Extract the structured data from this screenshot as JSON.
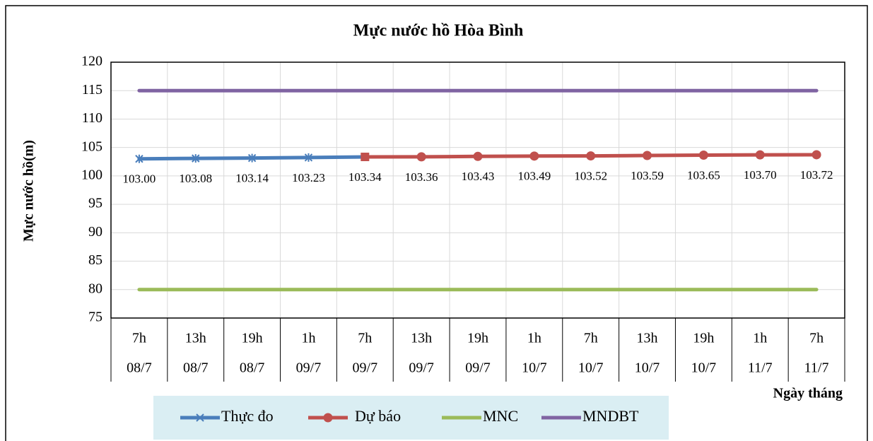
{
  "chart_data": {
    "type": "line",
    "title": "Mực nước hồ Hòa Bình",
    "y_label": "Mực nước hồ(m)",
    "x_label": "Ngày tháng",
    "categories": [
      [
        "7h",
        "08/7"
      ],
      [
        "13h",
        "08/7"
      ],
      [
        "19h",
        "08/7"
      ],
      [
        "1h",
        "09/7"
      ],
      [
        "7h",
        "09/7"
      ],
      [
        "13h",
        "09/7"
      ],
      [
        "19h",
        "09/7"
      ],
      [
        "1h",
        "10/7"
      ],
      [
        "7h",
        "10/7"
      ],
      [
        "13h",
        "10/7"
      ],
      [
        "19h",
        "10/7"
      ],
      [
        "1h",
        "11/7"
      ],
      [
        "7h",
        "11/7"
      ]
    ],
    "series": [
      {
        "name": "Thực đo",
        "color": "#4a7ebb",
        "marker": "asterisk",
        "values": [
          103.0,
          103.08,
          103.14,
          103.23,
          103.34,
          null,
          null,
          null,
          null,
          null,
          null,
          null,
          null
        ],
        "value_labels": [
          "103.00",
          "103.08",
          "103.14",
          "103.23",
          null,
          null,
          null,
          null,
          null,
          null,
          null,
          null,
          null
        ]
      },
      {
        "name": "Dự báo",
        "color": "#c0504d",
        "marker": "circle",
        "values": [
          null,
          null,
          null,
          null,
          103.34,
          103.36,
          103.43,
          103.49,
          103.52,
          103.59,
          103.65,
          103.7,
          103.72
        ],
        "value_labels": [
          null,
          null,
          null,
          null,
          "103.34",
          "103.36",
          "103.43",
          "103.49",
          "103.52",
          "103.59",
          "103.65",
          "103.70",
          "103.72"
        ]
      },
      {
        "name": "MNC",
        "color": "#9bbb59",
        "marker": "none",
        "values": [
          80,
          80,
          80,
          80,
          80,
          80,
          80,
          80,
          80,
          80,
          80,
          80,
          80
        ]
      },
      {
        "name": "MNDBT",
        "color": "#8064a2",
        "marker": "none",
        "values": [
          115,
          115,
          115,
          115,
          115,
          115,
          115,
          115,
          115,
          115,
          115,
          115,
          115
        ]
      }
    ],
    "ylim": [
      75,
      120
    ],
    "yticks": [
      75,
      80,
      85,
      90,
      95,
      100,
      105,
      110,
      115,
      120
    ],
    "grid": true,
    "legend": "bottom"
  }
}
